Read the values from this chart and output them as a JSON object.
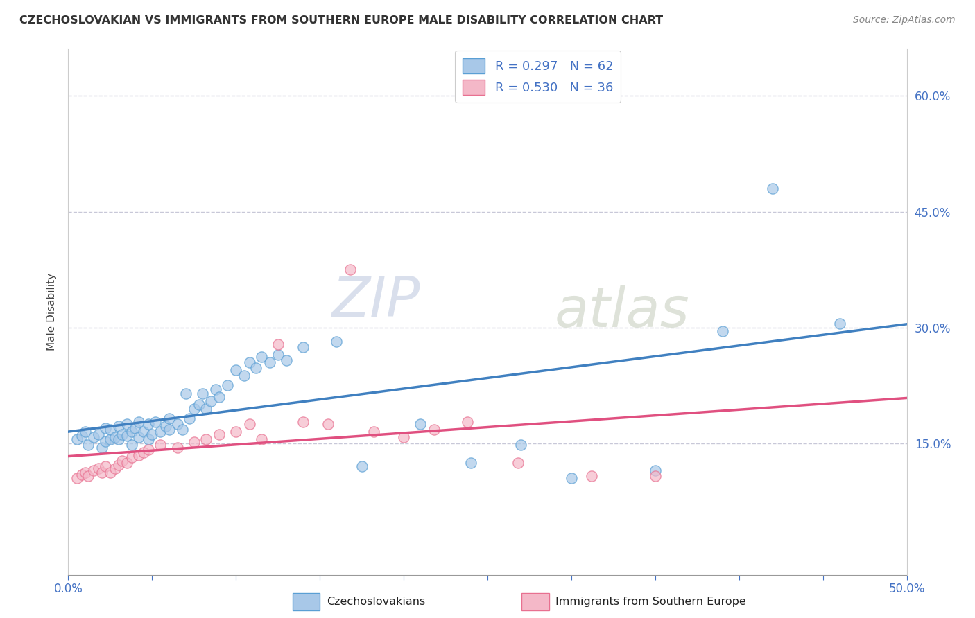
{
  "title": "CZECHOSLOVAKIAN VS IMMIGRANTS FROM SOUTHERN EUROPE MALE DISABILITY CORRELATION CHART",
  "source": "Source: ZipAtlas.com",
  "ylabel": "Male Disability",
  "xlim": [
    0.0,
    0.5
  ],
  "ylim": [
    -0.02,
    0.66
  ],
  "x_tick_positions": [
    0.0,
    0.05,
    0.1,
    0.15,
    0.2,
    0.25,
    0.3,
    0.35,
    0.4,
    0.45,
    0.5
  ],
  "x_tick_labels_show": {
    "0.0": "0.0%",
    "0.50": "50.0%"
  },
  "right_y_tick_positions": [
    0.15,
    0.3,
    0.45,
    0.6
  ],
  "right_y_tick_labels": [
    "15.0%",
    "30.0%",
    "45.0%",
    "60.0%"
  ],
  "legend_r1": "R = 0.297",
  "legend_n1": "N = 62",
  "legend_r2": "R = 0.530",
  "legend_n2": "N = 36",
  "blue_color": "#a8c8e8",
  "pink_color": "#f4b8c8",
  "blue_edge_color": "#5a9fd4",
  "pink_edge_color": "#e87090",
  "blue_line_color": "#4080c0",
  "pink_line_color": "#e05080",
  "grid_color": "#c8c8d8",
  "blue_scatter_x": [
    0.005,
    0.008,
    0.01,
    0.012,
    0.015,
    0.018,
    0.02,
    0.022,
    0.022,
    0.025,
    0.025,
    0.028,
    0.03,
    0.03,
    0.032,
    0.035,
    0.035,
    0.038,
    0.038,
    0.04,
    0.042,
    0.042,
    0.045,
    0.048,
    0.048,
    0.05,
    0.052,
    0.055,
    0.058,
    0.06,
    0.06,
    0.065,
    0.068,
    0.07,
    0.072,
    0.075,
    0.078,
    0.08,
    0.082,
    0.085,
    0.088,
    0.09,
    0.095,
    0.1,
    0.105,
    0.108,
    0.112,
    0.115,
    0.12,
    0.125,
    0.13,
    0.14,
    0.16,
    0.175,
    0.21,
    0.24,
    0.27,
    0.3,
    0.35,
    0.39,
    0.42,
    0.46
  ],
  "blue_scatter_y": [
    0.155,
    0.16,
    0.165,
    0.148,
    0.158,
    0.162,
    0.145,
    0.153,
    0.17,
    0.155,
    0.168,
    0.158,
    0.155,
    0.172,
    0.162,
    0.16,
    0.175,
    0.148,
    0.165,
    0.17,
    0.158,
    0.178,
    0.165,
    0.155,
    0.175,
    0.162,
    0.178,
    0.165,
    0.172,
    0.168,
    0.182,
    0.175,
    0.168,
    0.215,
    0.182,
    0.195,
    0.2,
    0.215,
    0.195,
    0.205,
    0.22,
    0.21,
    0.225,
    0.245,
    0.238,
    0.255,
    0.248,
    0.262,
    0.255,
    0.265,
    0.258,
    0.275,
    0.282,
    0.12,
    0.175,
    0.125,
    0.148,
    0.105,
    0.115,
    0.295,
    0.48,
    0.305
  ],
  "pink_scatter_x": [
    0.005,
    0.008,
    0.01,
    0.012,
    0.015,
    0.018,
    0.02,
    0.022,
    0.025,
    0.028,
    0.03,
    0.032,
    0.035,
    0.038,
    0.042,
    0.045,
    0.048,
    0.055,
    0.065,
    0.075,
    0.082,
    0.09,
    0.1,
    0.108,
    0.115,
    0.125,
    0.14,
    0.155,
    0.168,
    0.182,
    0.2,
    0.218,
    0.238,
    0.268,
    0.312,
    0.35
  ],
  "pink_scatter_y": [
    0.105,
    0.11,
    0.112,
    0.108,
    0.115,
    0.118,
    0.112,
    0.12,
    0.112,
    0.118,
    0.122,
    0.128,
    0.125,
    0.132,
    0.135,
    0.138,
    0.142,
    0.148,
    0.145,
    0.152,
    0.155,
    0.162,
    0.165,
    0.175,
    0.155,
    0.278,
    0.178,
    0.175,
    0.375,
    0.165,
    0.158,
    0.168,
    0.178,
    0.125,
    0.108,
    0.108
  ]
}
